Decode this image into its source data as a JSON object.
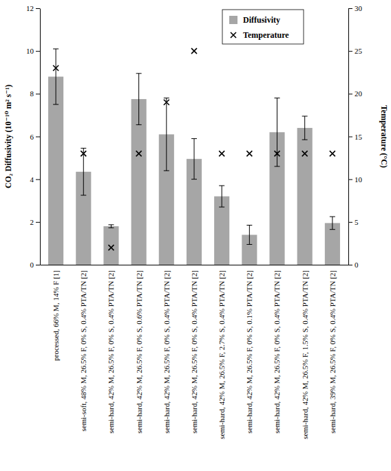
{
  "chart_data": {
    "type": "bar",
    "categories": [
      "processed, 66% M, 14% F [1]",
      "semi-soft, 48% M, 26.5% F, 0% S, 0.4% PTA/TN [2]",
      "semi-hard, 42% M, 26.5% F, 0% S, 0.4% PTA/TN [2]",
      "semi-hard, 42% M, 26.5% F, 0% S, 0.6% PTA/TN [2]",
      "semi-hard, 42% M, 26.5% F, 0% S, 0.4% PTA/TN [2]",
      "semi-hard, 42% M, 26.5% F, 0% S, 0.4% PTA/TN [2]",
      "semi-hard, 42% M, 26.5% F, 2.7% S, 0.4% PTA/TN [2]",
      "semi-hard, 42% M, 26.5% F, 0% S, 0.1% PTA/TN [2]",
      "semi-hard, 42% M, 26.5% F, 0% S, 0.4% PTA/TN [2]",
      "semi-hard, 42% M, 26.5% F, 1.5% S, 0.4% PTA/TN [2]",
      "semi-hard, 39% M, 26.5% F, 0% S, 0.4% PTA/TN [2]"
    ],
    "series": [
      {
        "name": "Diffusivity",
        "type": "bar",
        "color": "#a6a6a6",
        "values": [
          8.8,
          4.35,
          1.8,
          7.75,
          6.1,
          4.95,
          3.2,
          1.4,
          6.2,
          6.4,
          1.95
        ],
        "errors": [
          1.3,
          1.1,
          0.07,
          1.2,
          1.7,
          0.95,
          0.5,
          0.45,
          1.6,
          0.55,
          0.3
        ]
      },
      {
        "name": "Temperature",
        "type": "scatter",
        "marker": "x",
        "color": "#000000",
        "axis": "y2",
        "values": [
          23,
          13,
          2,
          13,
          19,
          25,
          13,
          13,
          13,
          13,
          13
        ]
      }
    ],
    "y_label": "CO₂ Diffusivity (10⁻¹⁰ m² s⁻¹)",
    "y2_label": "Temperature (°C)",
    "ylim": [
      0,
      12
    ],
    "yticks": [
      0,
      2,
      4,
      6,
      8,
      10,
      12
    ],
    "y2lim": [
      0,
      30
    ],
    "y2ticks": [
      0,
      5,
      10,
      15,
      20,
      25,
      30
    ],
    "legend": "top-right"
  }
}
